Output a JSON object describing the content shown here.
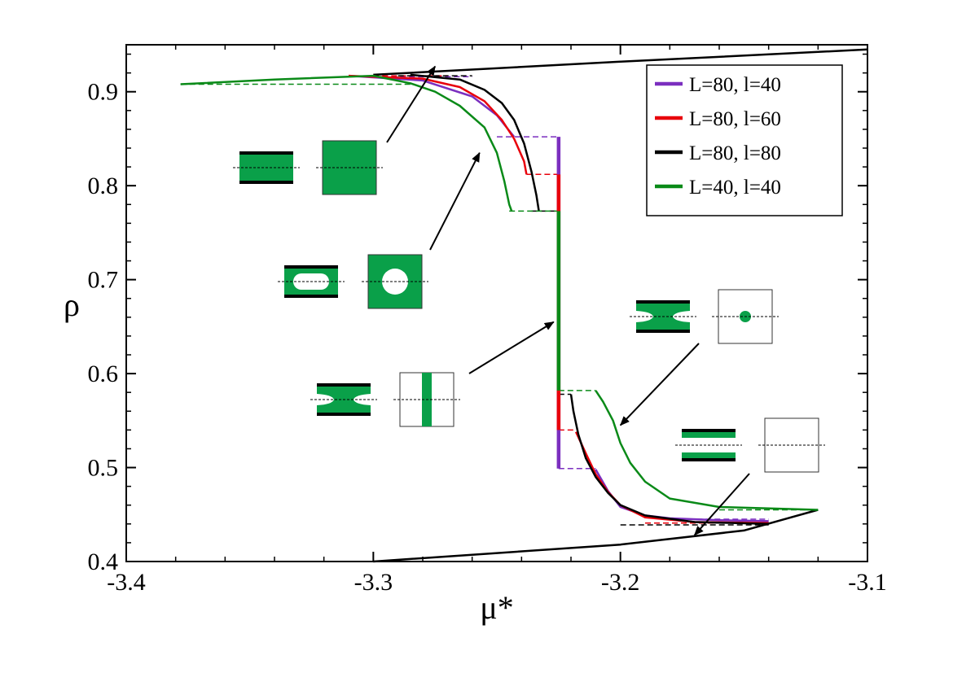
{
  "chart_data": {
    "type": "line",
    "xlabel": "μ*",
    "ylabel": "ρ",
    "xlim": [
      -3.4,
      -3.1
    ],
    "ylim": [
      0.4,
      0.95
    ],
    "x_ticks": [
      -3.4,
      -3.3,
      -3.2,
      -3.1
    ],
    "x_tick_labels": [
      "-3.4",
      "-3.3",
      "-3.2",
      "-3.1"
    ],
    "y_ticks": [
      0.4,
      0.5,
      0.6,
      0.7,
      0.8,
      0.9
    ],
    "y_tick_labels": [
      "0.4",
      "0.5",
      "0.6",
      "0.7",
      "0.8",
      "0.9"
    ],
    "grid": false,
    "legend_position": "top-right",
    "series": [
      {
        "name": "L=80, l=40",
        "color": "#7b2fbf",
        "upper": [
          [
            -3.31,
            0.917
          ],
          [
            -3.28,
            0.912
          ],
          [
            -3.26,
            0.895
          ],
          [
            -3.25,
            0.875
          ],
          [
            -3.243,
            0.852
          ]
        ],
        "lower": [
          [
            -3.21,
            0.498
          ],
          [
            -3.205,
            0.475
          ],
          [
            -3.2,
            0.458
          ],
          [
            -3.19,
            0.449
          ],
          [
            -3.18,
            0.446
          ],
          [
            -3.16,
            0.444
          ],
          [
            -3.14,
            0.443
          ]
        ],
        "vertical": {
          "x": -3.225,
          "from": 0.499,
          "to": 0.852
        },
        "dashed": [
          [
            [
              -3.25,
              0.852
            ],
            [
              -3.225,
              0.852
            ]
          ],
          [
            [
              -3.225,
              0.499
            ],
            [
              -3.21,
              0.499
            ]
          ],
          [
            [
              -3.3,
              0.916
            ],
            [
              -3.26,
              0.916
            ]
          ],
          [
            [
              -3.18,
              0.445
            ],
            [
              -3.14,
              0.445
            ]
          ]
        ]
      },
      {
        "name": "L=80, l=60",
        "color": "#e8000b",
        "upper": [
          [
            -3.31,
            0.917
          ],
          [
            -3.28,
            0.914
          ],
          [
            -3.265,
            0.905
          ],
          [
            -3.255,
            0.89
          ],
          [
            -3.248,
            0.87
          ],
          [
            -3.243,
            0.85
          ],
          [
            -3.239,
            0.826
          ],
          [
            -3.238,
            0.812
          ]
        ],
        "lower": [
          [
            -3.218,
            0.538
          ],
          [
            -3.214,
            0.515
          ],
          [
            -3.21,
            0.493
          ],
          [
            -3.205,
            0.474
          ],
          [
            -3.2,
            0.46
          ],
          [
            -3.19,
            0.447
          ],
          [
            -3.17,
            0.442
          ],
          [
            -3.14,
            0.441
          ]
        ],
        "vertical": {
          "x": -3.225,
          "from": 0.54,
          "to": 0.812
        },
        "dashed": [
          [
            [
              -3.238,
              0.812
            ],
            [
              -3.225,
              0.812
            ]
          ],
          [
            [
              -3.225,
              0.54
            ],
            [
              -3.218,
              0.54
            ]
          ],
          [
            [
              -3.3,
              0.917
            ],
            [
              -3.27,
              0.917
            ]
          ],
          [
            [
              -3.19,
              0.441
            ],
            [
              -3.14,
              0.441
            ]
          ]
        ]
      },
      {
        "name": "L=80, l=80",
        "color": "#000000",
        "upper": [
          [
            -3.285,
            0.918
          ],
          [
            -3.265,
            0.913
          ],
          [
            -3.255,
            0.902
          ],
          [
            -3.248,
            0.888
          ],
          [
            -3.243,
            0.87
          ],
          [
            -3.239,
            0.845
          ],
          [
            -3.236,
            0.815
          ],
          [
            -3.234,
            0.79
          ],
          [
            -3.233,
            0.773
          ]
        ],
        "lower": [
          [
            -3.22,
            0.578
          ],
          [
            -3.219,
            0.56
          ],
          [
            -3.217,
            0.535
          ],
          [
            -3.214,
            0.51
          ],
          [
            -3.21,
            0.49
          ],
          [
            -3.205,
            0.473
          ],
          [
            -3.2,
            0.46
          ],
          [
            -3.19,
            0.449
          ],
          [
            -3.17,
            0.442
          ],
          [
            -3.14,
            0.44
          ]
        ],
        "vertical": {
          "x": -3.225,
          "from": 0.578,
          "to": 0.773
        },
        "dashed": [
          [
            [
              -3.236,
              0.773
            ],
            [
              -3.225,
              0.773
            ]
          ],
          [
            [
              -3.225,
              0.578
            ],
            [
              -3.22,
              0.578
            ]
          ],
          [
            [
              -3.29,
              0.917
            ],
            [
              -3.26,
              0.917
            ]
          ],
          [
            [
              -3.2,
              0.439
            ],
            [
              -3.14,
              0.439
            ]
          ]
        ],
        "bulk_coexistence": [
          [
            [
              -3.3,
              0.4
            ],
            [
              -3.2,
              0.418
            ],
            [
              -3.15,
              0.433
            ],
            [
              -3.12,
              0.455
            ]
          ],
          [
            [
              -3.3,
              0.918
            ],
            [
              -3.2,
              0.932
            ],
            [
              -3.1,
              0.945
            ]
          ]
        ]
      },
      {
        "name": "L=40, l=40",
        "color": "#0a8a18",
        "upper": [
          [
            -3.378,
            0.908
          ],
          [
            -3.34,
            0.913
          ],
          [
            -3.3,
            0.917
          ],
          [
            -3.285,
            0.909
          ],
          [
            -3.275,
            0.9
          ],
          [
            -3.265,
            0.885
          ],
          [
            -3.255,
            0.862
          ],
          [
            -3.25,
            0.835
          ],
          [
            -3.247,
            0.805
          ],
          [
            -3.245,
            0.78
          ],
          [
            -3.244,
            0.773
          ]
        ],
        "lower": [
          [
            -3.21,
            0.582
          ],
          [
            -3.207,
            0.57
          ],
          [
            -3.203,
            0.55
          ],
          [
            -3.2,
            0.526
          ],
          [
            -3.196,
            0.505
          ],
          [
            -3.19,
            0.485
          ],
          [
            -3.18,
            0.467
          ],
          [
            -3.16,
            0.458
          ],
          [
            -3.12,
            0.455
          ]
        ],
        "vertical": {
          "x": -3.225,
          "from": 0.582,
          "to": 0.773
        },
        "dashed": [
          [
            [
              -3.378,
              0.908
            ],
            [
              -3.285,
              0.908
            ]
          ],
          [
            [
              -3.245,
              0.773
            ],
            [
              -3.225,
              0.773
            ]
          ],
          [
            [
              -3.225,
              0.582
            ],
            [
              -3.21,
              0.582
            ]
          ],
          [
            [
              -3.16,
              0.455
            ],
            [
              -3.12,
              0.455
            ]
          ]
        ]
      }
    ],
    "annotations": [
      {
        "shape": "full",
        "arrow_to": [
          -3.275,
          0.927
        ]
      },
      {
        "shape": "hole",
        "arrow_to": [
          -3.257,
          0.835
        ]
      },
      {
        "shape": "stripe",
        "arrow_to": [
          -3.227,
          0.655
        ]
      },
      {
        "shape": "dot",
        "arrow_to": [
          -3.2,
          0.545
        ]
      },
      {
        "shape": "empty",
        "arrow_to": [
          -3.17,
          0.428
        ]
      }
    ]
  }
}
